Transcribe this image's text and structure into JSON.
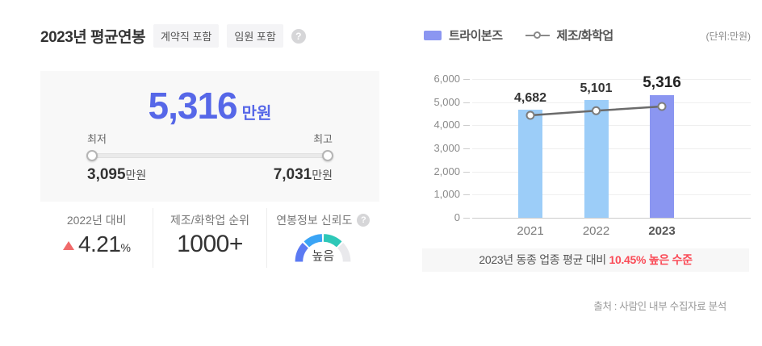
{
  "header": {
    "title": "2023년 평균연봉",
    "badges": [
      "계약직 포함",
      "임원 포함"
    ],
    "help_icon": "?"
  },
  "summary_card": {
    "amount": "5,316",
    "amount_unit": "만원",
    "min_label": "최저",
    "max_label": "최고",
    "min_value": "3,095",
    "min_suffix": "만원",
    "max_value": "7,031",
    "max_suffix": "만원"
  },
  "stats": {
    "yoy": {
      "label": "2022년 대비",
      "direction": "up",
      "value": "4.21",
      "unit": "%"
    },
    "rank": {
      "label": "제조/화학업 순위",
      "value": "1000+"
    },
    "reliability": {
      "label": "연봉정보 신뢰도",
      "help_icon": "?",
      "value": "높음"
    }
  },
  "legend": {
    "bar_series": "트라이본즈",
    "line_series": "제조/화학업",
    "unit_note": "(단위:만원)"
  },
  "chart_data": {
    "type": "bar",
    "categories": [
      "2021",
      "2022",
      "2023"
    ],
    "series": [
      {
        "name": "트라이본즈",
        "type": "bar",
        "values": [
          4682,
          5101,
          5316
        ],
        "labels": [
          "4,682",
          "5,101",
          "5,316"
        ]
      },
      {
        "name": "제조/화학업",
        "type": "line",
        "values": [
          4430,
          4630,
          4813
        ],
        "note": "estimated from marker positions; 2023 = 5316/1.1045"
      }
    ],
    "highlight_category": "2023",
    "ylim": [
      0,
      6000
    ],
    "yticks": [
      0,
      1000,
      2000,
      3000,
      4000,
      5000,
      6000
    ],
    "ytick_labels": [
      "0",
      "1,000",
      "2,000",
      "3,000",
      "4,000",
      "5,000",
      "6,000"
    ],
    "grid": true,
    "legend_position": "top"
  },
  "banner": {
    "prefix": "2023년 동종 업종 평균 대비 ",
    "highlight": "10.45% 높은 수준"
  },
  "source": "출처 : 사람인 내부 수집자료 분석",
  "colors": {
    "accent_blue": "#5667e8",
    "bar_default": "#9ccdf8",
    "bar_highlight": "#8b96f1",
    "line_gray": "#6b6b6b",
    "marker_ring": "#7d7d7d",
    "red": "#fa4b57",
    "triangle_red": "#f06a6a",
    "gauge": [
      "#5b7af3",
      "#3aa4f5",
      "#2ec8b8",
      "#e9e9ec"
    ]
  }
}
